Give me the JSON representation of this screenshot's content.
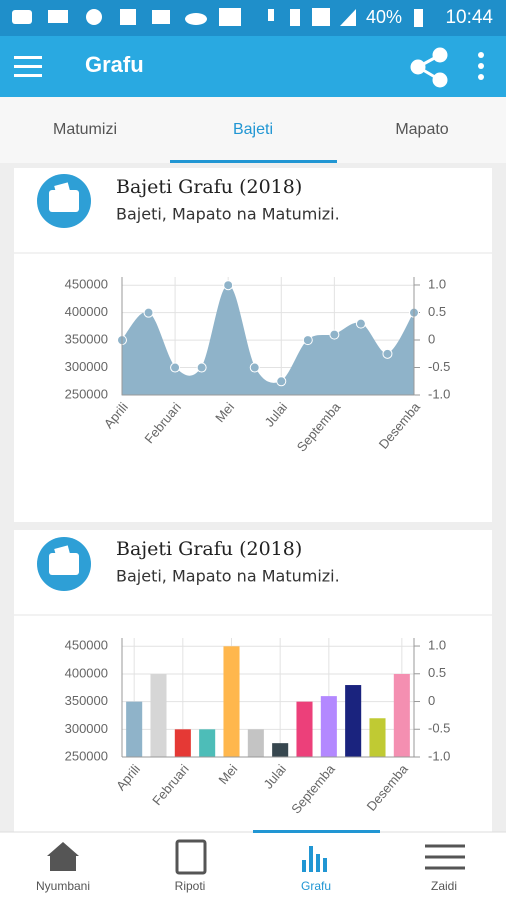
{
  "status_bar": {
    "battery": "40%",
    "time": "10:44"
  },
  "app_bar": {
    "title": "Grafu"
  },
  "tabs": [
    "Matumizi",
    "Bajeti",
    "Mapato"
  ],
  "bottom_nav": [
    "Nyumbani",
    "Ripoti",
    "Grafu",
    "Zaidi"
  ],
  "chart_data": [
    {
      "type": "area",
      "title": "Bajeti Grafu (2018)",
      "subtitle": "Bajeti, Mapato na Matumizi.",
      "categories": [
        "Aprili",
        null,
        "Februari",
        null,
        "Mei",
        null,
        "Julai",
        null,
        "Septemba",
        null,
        null,
        "Desemba"
      ],
      "values": [
        350000,
        400000,
        300000,
        300000,
        450000,
        300000,
        275000,
        350000,
        360000,
        380000,
        325000,
        400000
      ],
      "color": "#8fb3c9",
      "ylim": [
        250000,
        465000
      ],
      "yticks": [
        250000,
        300000,
        350000,
        400000,
        450000
      ],
      "y2lim": [
        -1,
        1.145
      ],
      "y2ticks": [
        {
          "value": 1,
          "label": "1.0"
        },
        0.5,
        0,
        -0.5,
        {
          "value": -1,
          "label": "-1.0"
        }
      ],
      "grid": true
    },
    {
      "type": "bar",
      "title": "Bajeti Grafu (2018)",
      "subtitle": "Bajeti, Mapato na Matumizi.",
      "categories": [
        "Aprili",
        null,
        "Februari",
        null,
        "Mei",
        null,
        "Julai",
        null,
        "Septemba",
        null,
        null,
        "Desemba"
      ],
      "values": [
        350000,
        400000,
        300000,
        300000,
        450000,
        300000,
        275000,
        350000,
        360000,
        380000,
        320000,
        400000
      ],
      "colors": [
        "#8fb3c9",
        "#d6d6d6",
        "#e53935",
        "#4dbdb8",
        "#ffb74d",
        "#c4c4c4",
        "#37474f",
        "#ec407a",
        "#b388ff",
        "#1a237e",
        "#c0ca33",
        "#f48fb1"
      ],
      "ylim": [
        250000,
        465000
      ],
      "yticks": [
        250000,
        300000,
        350000,
        400000,
        450000
      ],
      "y2lim": [
        -1,
        1.145
      ],
      "y2ticks": [
        {
          "value": 1,
          "label": "1.0"
        },
        0.5,
        0,
        -0.5,
        {
          "value": -1,
          "label": "-1.0"
        }
      ],
      "grid": true
    }
  ]
}
